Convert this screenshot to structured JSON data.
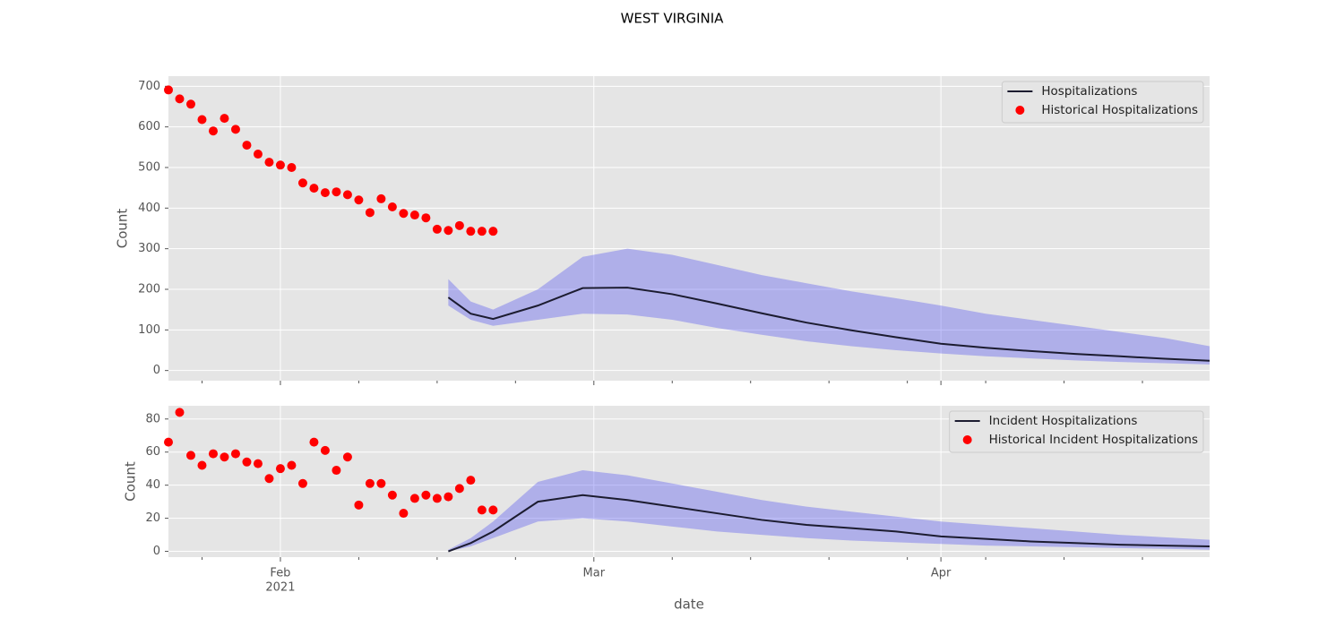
{
  "title": "WEST VIRGINIA",
  "chart_data": [
    {
      "type": "line",
      "ylabel": "Count",
      "legend": "upper right",
      "grid": true,
      "xlim": [
        "2021-01-22",
        "2021-04-25"
      ],
      "xticks": [
        {
          "value": "2021-02-01",
          "label": "Feb"
        },
        {
          "value": "2021-03-01",
          "label": "Mar"
        },
        {
          "value": "2021-04-01",
          "label": "Apr"
        }
      ],
      "xminorticks": [
        "2021-01-25",
        "2021-02-08",
        "2021-02-15",
        "2021-02-22",
        "2021-03-08",
        "2021-03-15",
        "2021-03-22",
        "2021-03-29",
        "2021-04-05",
        "2021-04-12",
        "2021-04-19"
      ],
      "ylim": [
        -25,
        725
      ],
      "yticks": [
        0,
        100,
        200,
        300,
        400,
        500,
        600,
        700
      ],
      "series": [
        {
          "name": "Hospitalizations",
          "color": "#1c1c30",
          "band_color": "#4a4af0",
          "x": [
            "2021-02-16",
            "2021-02-18",
            "2021-02-20",
            "2021-02-24",
            "2021-02-28",
            "2021-03-04",
            "2021-03-08",
            "2021-03-12",
            "2021-03-16",
            "2021-03-20",
            "2021-03-24",
            "2021-03-28",
            "2021-04-01",
            "2021-04-05",
            "2021-04-09",
            "2021-04-13",
            "2021-04-17",
            "2021-04-21",
            "2021-04-25"
          ],
          "values": [
            180,
            140,
            127,
            160,
            203,
            204,
            188,
            165,
            141,
            118,
            99,
            82,
            66,
            56,
            48,
            41,
            35,
            29,
            24
          ],
          "upper": [
            225,
            170,
            150,
            200,
            280,
            300,
            285,
            260,
            235,
            215,
            195,
            178,
            160,
            140,
            125,
            110,
            95,
            80,
            60
          ],
          "lower": [
            160,
            125,
            110,
            125,
            140,
            138,
            125,
            105,
            88,
            72,
            60,
            50,
            42,
            35,
            30,
            25,
            21,
            18,
            15
          ]
        },
        {
          "name": "Historical Hospitalizations",
          "type": "scatter",
          "color": "#ff0000",
          "x": [
            "2021-01-22",
            "2021-01-23",
            "2021-01-24",
            "2021-01-25",
            "2021-01-26",
            "2021-01-27",
            "2021-01-28",
            "2021-01-29",
            "2021-01-30",
            "2021-01-31",
            "2021-02-01",
            "2021-02-02",
            "2021-02-03",
            "2021-02-04",
            "2021-02-05",
            "2021-02-06",
            "2021-02-07",
            "2021-02-08",
            "2021-02-09",
            "2021-02-10",
            "2021-02-11",
            "2021-02-12",
            "2021-02-13",
            "2021-02-14",
            "2021-02-15",
            "2021-02-16",
            "2021-02-17",
            "2021-02-18",
            "2021-02-19",
            "2021-02-20"
          ],
          "values": [
            691,
            669,
            656,
            618,
            590,
            621,
            594,
            555,
            533,
            513,
            506,
            500,
            462,
            449,
            438,
            440,
            433,
            420,
            389,
            423,
            403,
            387,
            383,
            376,
            348,
            345,
            357,
            343,
            343,
            343
          ]
        }
      ]
    },
    {
      "type": "line",
      "ylabel": "Count",
      "xlabel": "date",
      "xtick_sublabel": "2021",
      "legend": "upper right",
      "grid": true,
      "xlim": [
        "2021-01-22",
        "2021-04-25"
      ],
      "xticks": [
        {
          "value": "2021-02-01",
          "label": "Feb"
        },
        {
          "value": "2021-03-01",
          "label": "Mar"
        },
        {
          "value": "2021-04-01",
          "label": "Apr"
        }
      ],
      "xminorticks": [
        "2021-01-25",
        "2021-02-08",
        "2021-02-15",
        "2021-02-22",
        "2021-03-08",
        "2021-03-15",
        "2021-03-22",
        "2021-03-29",
        "2021-04-05",
        "2021-04-12",
        "2021-04-19"
      ],
      "ylim": [
        -3.5,
        88
      ],
      "yticks": [
        0,
        20,
        40,
        60,
        80
      ],
      "series": [
        {
          "name": "Incident Hospitalizations",
          "color": "#1c1c30",
          "band_color": "#4a4af0",
          "x": [
            "2021-02-16",
            "2021-02-18",
            "2021-02-20",
            "2021-02-24",
            "2021-02-28",
            "2021-03-04",
            "2021-03-08",
            "2021-03-12",
            "2021-03-16",
            "2021-03-20",
            "2021-03-24",
            "2021-03-28",
            "2021-04-01",
            "2021-04-05",
            "2021-04-09",
            "2021-04-13",
            "2021-04-17",
            "2021-04-21",
            "2021-04-25"
          ],
          "values": [
            0,
            5,
            12,
            30,
            34,
            31,
            27,
            23,
            19,
            16,
            14,
            12,
            9,
            7.5,
            6,
            5,
            4,
            3.5,
            3
          ],
          "upper": [
            1,
            8,
            18,
            42,
            49,
            46,
            41,
            36,
            31,
            27,
            24,
            21,
            18,
            16,
            14,
            12,
            10,
            8.5,
            7
          ],
          "lower": [
            0,
            3,
            8,
            18,
            20,
            18,
            15,
            12,
            10,
            8,
            6.5,
            5.5,
            4.5,
            3.5,
            3,
            2.5,
            2,
            1.5,
            1
          ]
        },
        {
          "name": "Historical Incident Hospitalizations",
          "type": "scatter",
          "color": "#ff0000",
          "x": [
            "2021-01-22",
            "2021-01-23",
            "2021-01-24",
            "2021-01-25",
            "2021-01-26",
            "2021-01-27",
            "2021-01-28",
            "2021-01-29",
            "2021-01-30",
            "2021-01-31",
            "2021-02-01",
            "2021-02-02",
            "2021-02-03",
            "2021-02-04",
            "2021-02-05",
            "2021-02-06",
            "2021-02-07",
            "2021-02-08",
            "2021-02-09",
            "2021-02-10",
            "2021-02-11",
            "2021-02-12",
            "2021-02-13",
            "2021-02-14",
            "2021-02-15",
            "2021-02-16",
            "2021-02-17",
            "2021-02-18",
            "2021-02-19",
            "2021-02-20"
          ],
          "values": [
            66,
            84,
            58,
            52,
            59,
            57,
            59,
            54,
            53,
            44,
            50,
            52,
            41,
            66,
            61,
            49,
            57,
            28,
            41,
            41,
            34,
            23,
            32,
            34,
            32,
            33,
            38,
            43,
            25,
            25
          ]
        }
      ]
    }
  ]
}
